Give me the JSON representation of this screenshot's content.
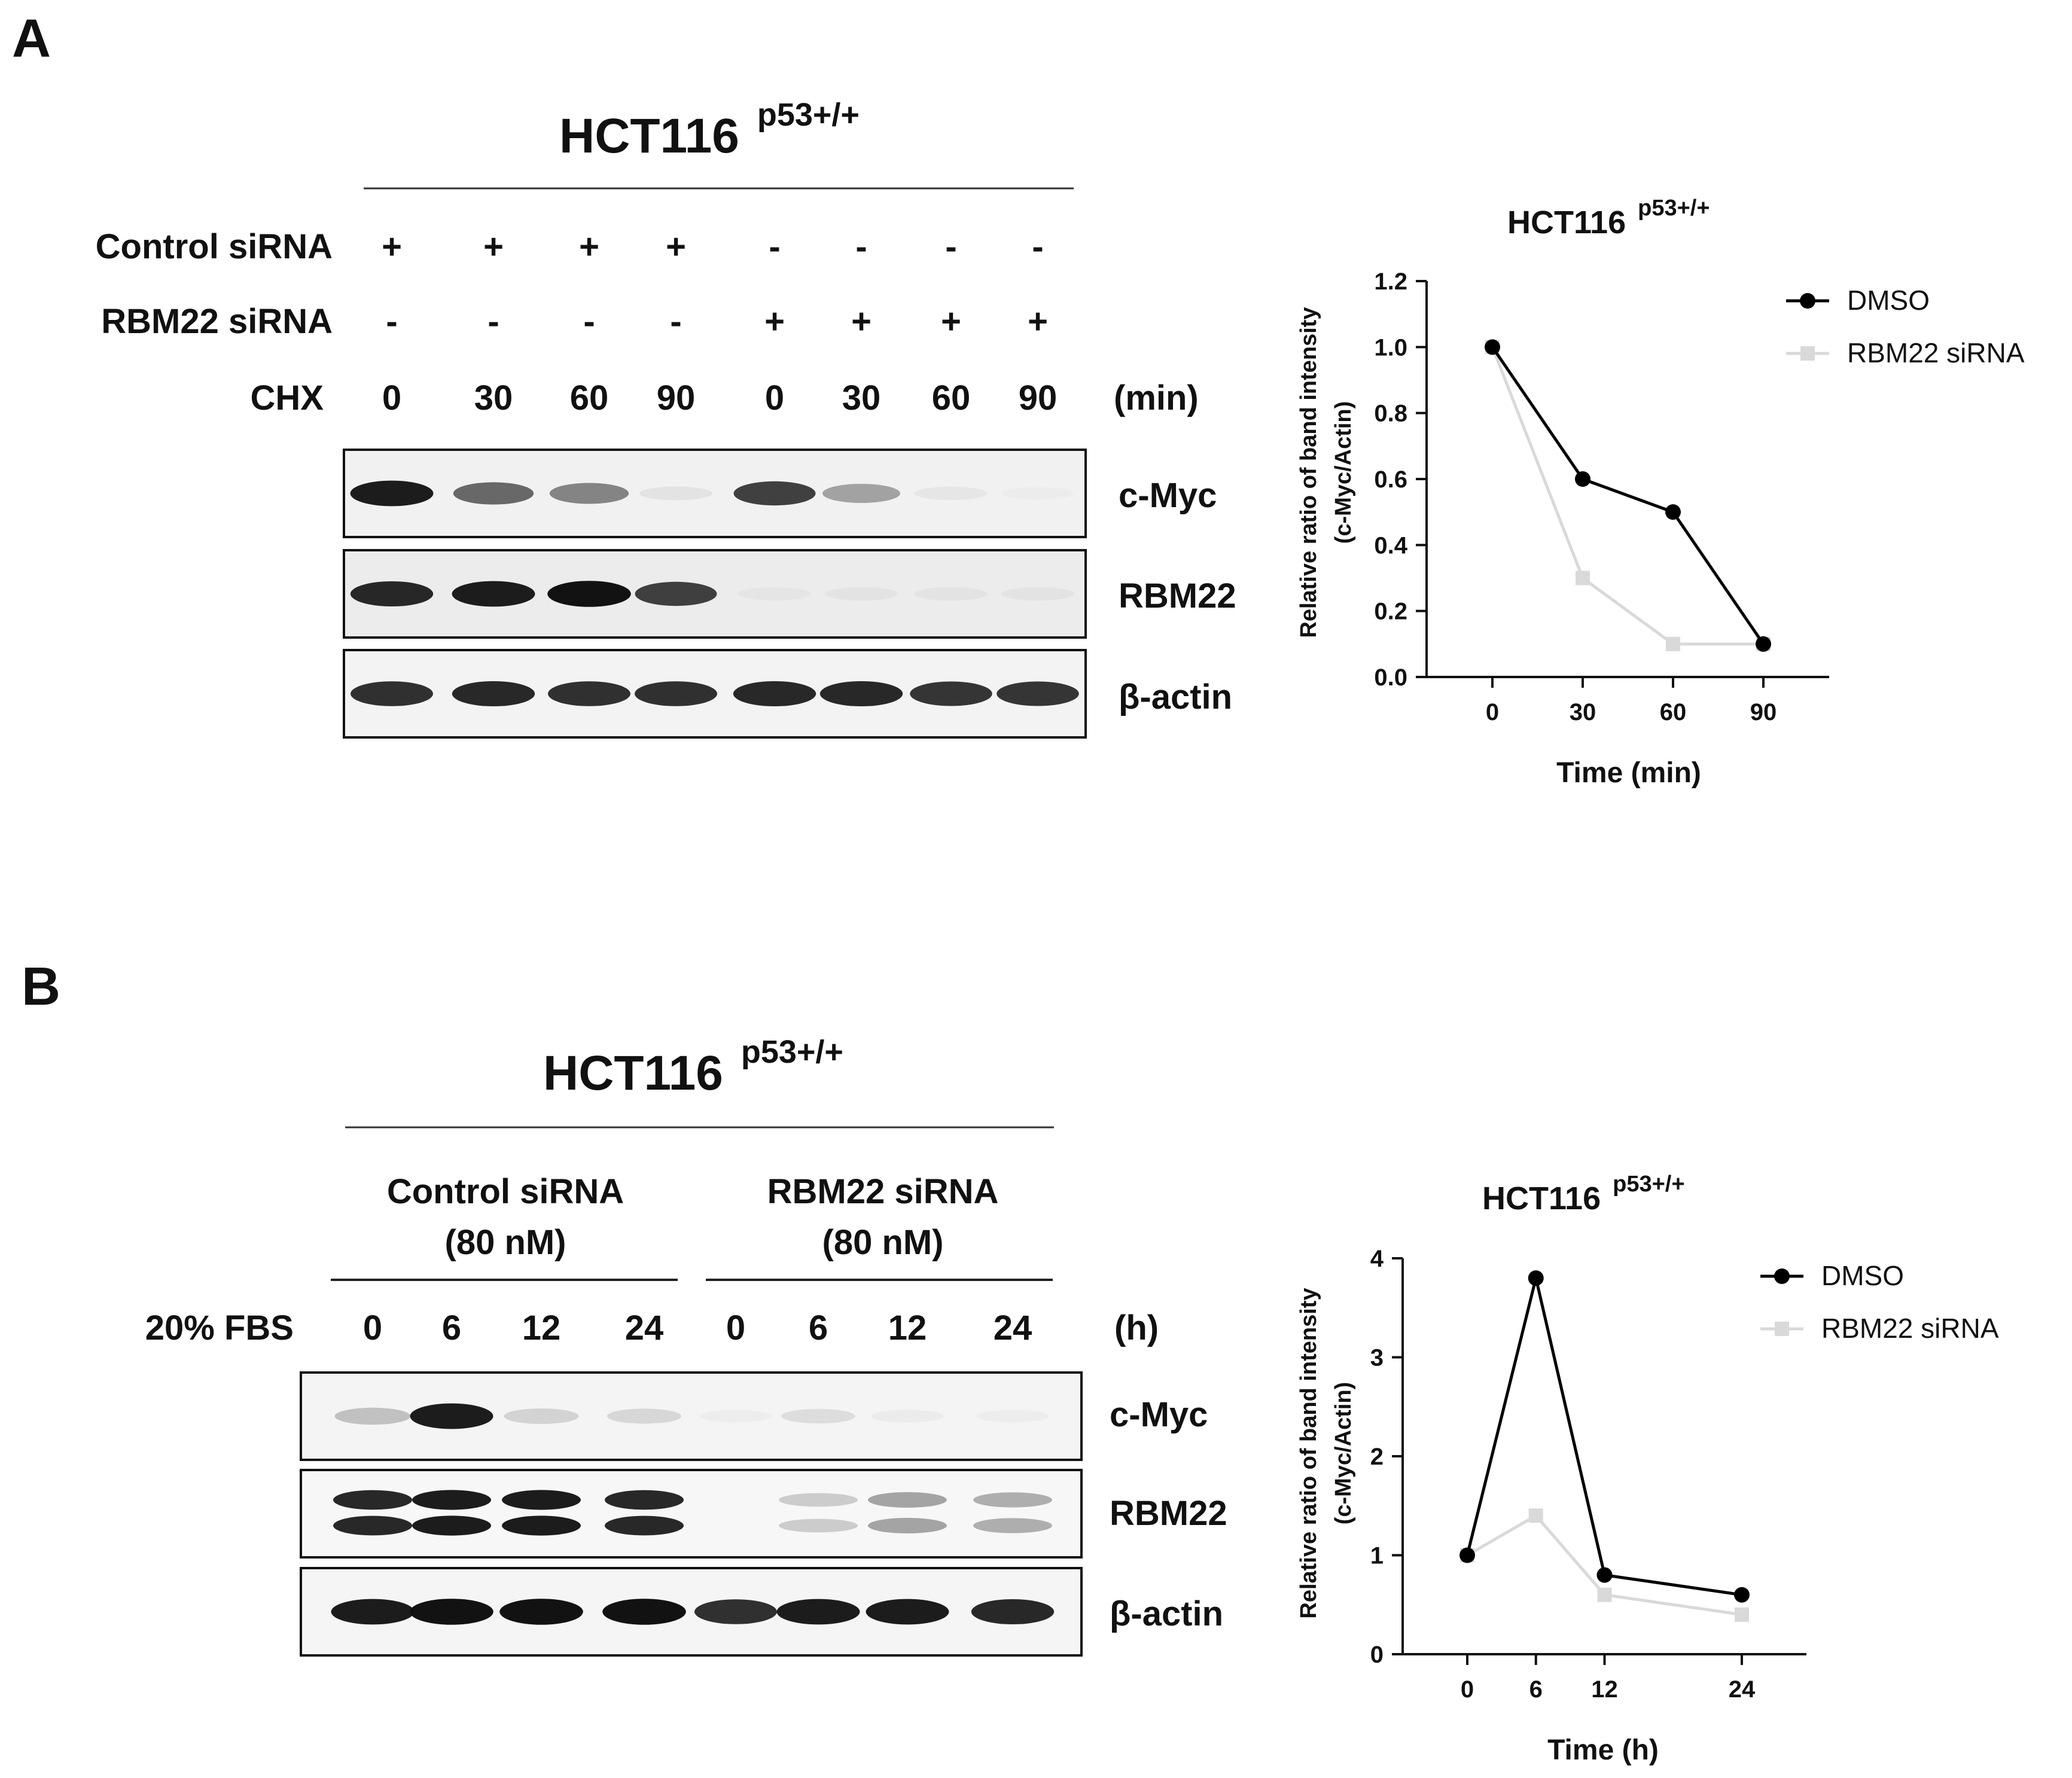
{
  "panelA": {
    "letter": "A",
    "cell_line": "HCT116",
    "superscript": "p53+/+",
    "rows": [
      {
        "label": "Control siRNA",
        "values": [
          "+",
          "+",
          "+",
          "+",
          "-",
          "-",
          "-",
          "-"
        ]
      },
      {
        "label": "RBM22 siRNA",
        "values": [
          "-",
          "-",
          "-",
          "-",
          "+",
          "+",
          "+",
          "+"
        ]
      },
      {
        "label": "CHX",
        "values": [
          "0",
          "30",
          "60",
          "90",
          "0",
          "30",
          "60",
          "90"
        ],
        "unit": "(min)"
      }
    ],
    "blots": [
      {
        "label": "c-Myc",
        "intensity": [
          0.95,
          0.72,
          0.62,
          0.12,
          0.85,
          0.5,
          0.1,
          0.03
        ],
        "double": false
      },
      {
        "label": "RBM22",
        "intensity": [
          0.92,
          0.95,
          0.98,
          0.85,
          0.08,
          0.1,
          0.1,
          0.1
        ],
        "double": false
      },
      {
        "label": "β-actin",
        "intensity": [
          0.9,
          0.92,
          0.9,
          0.9,
          0.92,
          0.92,
          0.88,
          0.88
        ],
        "double": false
      }
    ]
  },
  "panelB": {
    "letter": "B",
    "cell_line": "HCT116",
    "superscript": "p53+/+",
    "groups": [
      {
        "line1": "Control siRNA",
        "line2": "(80 nM)"
      },
      {
        "line1": "RBM22 siRNA",
        "line2": "(80 nM)"
      }
    ],
    "row": {
      "label": "20% FBS",
      "values": [
        "0",
        "6",
        "12",
        "24",
        "0",
        "6",
        "12",
        "24"
      ],
      "unit": "(h)"
    },
    "blots": [
      {
        "label": "c-Myc",
        "intensity": [
          0.35,
          0.95,
          0.25,
          0.22,
          0.04,
          0.18,
          0.06,
          0.04
        ],
        "double": false
      },
      {
        "label": "RBM22",
        "intensity": [
          0.92,
          0.95,
          0.95,
          0.92,
          0.0,
          0.3,
          0.5,
          0.45
        ],
        "double": true
      },
      {
        "label": "β-actin",
        "intensity": [
          0.95,
          0.98,
          0.98,
          0.98,
          0.9,
          0.95,
          0.95,
          0.92
        ],
        "double": false
      }
    ]
  },
  "chart_data": [
    {
      "type": "line",
      "title": "HCT116",
      "title_superscript": "p53+/+",
      "xlabel": "Time (min)",
      "ylabel": "Relative ratio of band intensity",
      "ylabel2": "(c-Myc/Actin)",
      "x": [
        0,
        30,
        60,
        90
      ],
      "xticks": [
        "0",
        "30",
        "60",
        "90"
      ],
      "ylim": [
        0,
        1.2
      ],
      "yticks": [
        "0.0",
        "0.2",
        "0.4",
        "0.6",
        "0.8",
        "1.0",
        "1.2"
      ],
      "legend_position": "top-right",
      "series": [
        {
          "name": "DMSO",
          "values": [
            1.0,
            0.6,
            0.5,
            0.1
          ],
          "color": "#000000",
          "marker": "circle"
        },
        {
          "name": "RBM22 siRNA",
          "values": [
            1.0,
            0.3,
            0.1,
            0.1
          ],
          "color": "#d9d9d9",
          "marker": "square"
        }
      ]
    },
    {
      "type": "line",
      "title": "HCT116",
      "title_superscript": "p53+/+",
      "xlabel": "Time (h)",
      "ylabel": "Relative ratio of band intensity",
      "ylabel2": "(c-Myc/Actin)",
      "x": [
        0,
        6,
        12,
        24
      ],
      "xticks": [
        "0",
        "6",
        "12",
        "24"
      ],
      "ylim": [
        0,
        4
      ],
      "yticks": [
        "0",
        "1",
        "2",
        "3",
        "4"
      ],
      "legend_position": "top-right",
      "series": [
        {
          "name": "DMSO",
          "values": [
            1.0,
            3.8,
            0.8,
            0.6
          ],
          "color": "#000000",
          "marker": "circle"
        },
        {
          "name": "RBM22 siRNA",
          "values": [
            1.0,
            1.4,
            0.6,
            0.4
          ],
          "color": "#d9d9d9",
          "marker": "square"
        }
      ]
    }
  ]
}
